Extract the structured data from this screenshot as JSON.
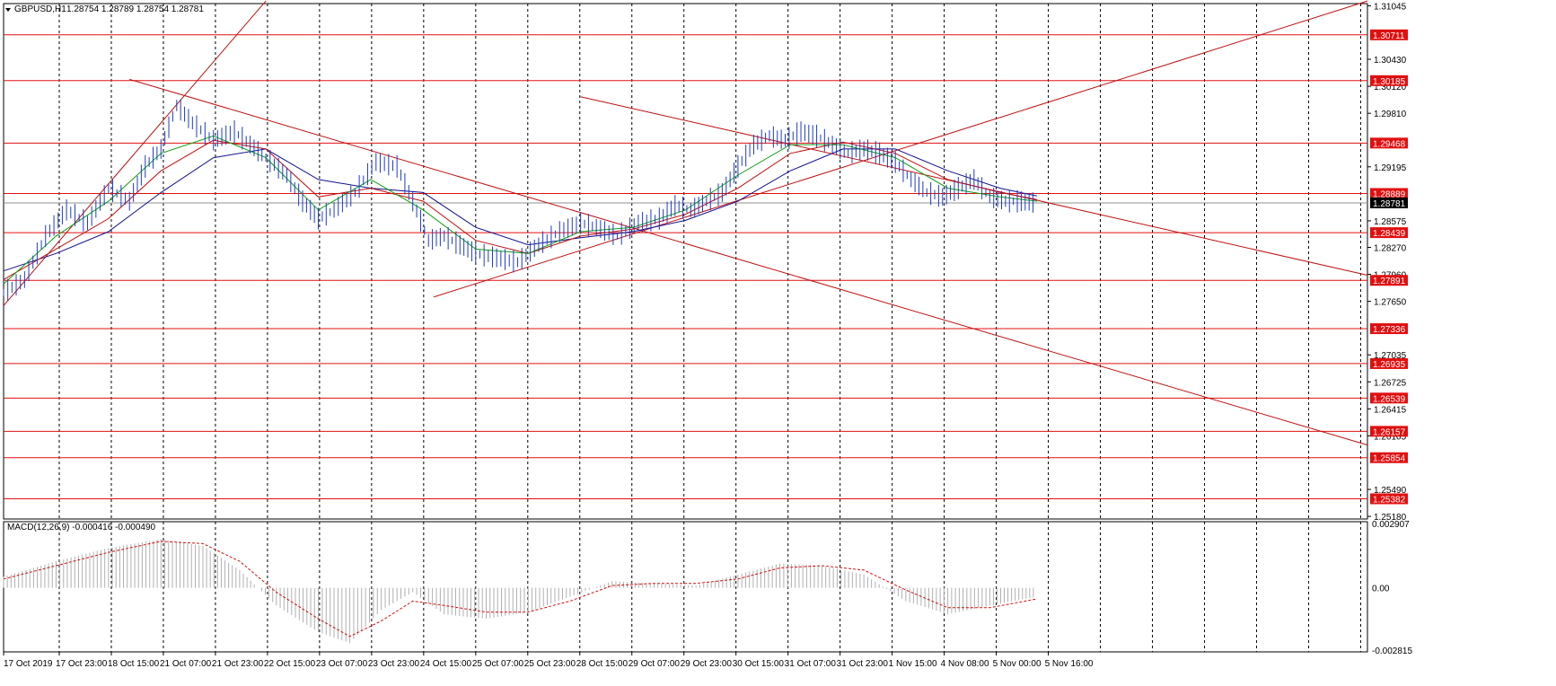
{
  "header": {
    "symbol_label": "GBPUSD,H1",
    "ohlc": "1.28754 1.28789 1.28754 1.28781"
  },
  "colors": {
    "bull": "#000000",
    "price_line": "#1e3cc8",
    "ma_fast": "#10a010",
    "ma_mid": "#c01010",
    "ma_slow": "#101090",
    "level_line": "#e01010",
    "level_tag_bg": "#e01010",
    "level_tag_text": "#ffffff",
    "current_tag_bg": "#000000",
    "grid": "#000000",
    "macd_hist": "#b0b0b0",
    "macd_signal": "#d01010"
  },
  "chart_data": {
    "type": "line",
    "title": "",
    "price_axis_ticks": [
      "1.31045",
      "1.30430",
      "1.30120",
      "1.29810",
      "1.29195",
      "1.28575",
      "1.28270",
      "1.27960",
      "1.27650",
      "1.27035",
      "1.26725",
      "1.26415",
      "1.26105",
      "1.25490",
      "1.25180"
    ],
    "time_axis_labels": [
      "17 Oct 2019",
      "17 Oct 23:00",
      "18 Oct 15:00",
      "21 Oct 07:00",
      "21 Oct 23:00",
      "22 Oct 15:00",
      "23 Oct 07:00",
      "23 Oct 23:00",
      "24 Oct 15:00",
      "25 Oct 07:00",
      "25 Oct 23:00",
      "28 Oct 15:00",
      "29 Oct 07:00",
      "29 Oct 23:00",
      "30 Oct 15:00",
      "31 Oct 07:00",
      "31 Oct 23:00",
      "1 Nov 15:00",
      "4 Nov 08:00",
      "5 Nov 00:00",
      "5 Nov 16:00"
    ],
    "horizontal_levels": [
      "1.30711",
      "1.30185",
      "1.29468",
      "1.28889",
      "1.28439",
      "1.27891",
      "1.27336",
      "1.26935",
      "1.26539",
      "1.26157",
      "1.25854",
      "1.25382"
    ],
    "current_price": "1.28781",
    "price_series": {
      "name": "GBPUSD,H1",
      "points": [
        [
          0,
          1.2775
        ],
        [
          4,
          1.279
        ],
        [
          8,
          1.284
        ],
        [
          12,
          1.287
        ],
        [
          16,
          1.2855
        ],
        [
          20,
          1.2895
        ],
        [
          24,
          1.288
        ],
        [
          27,
          1.292
        ],
        [
          30,
          1.294
        ],
        [
          33,
          1.299
        ],
        [
          36,
          1.297
        ],
        [
          40,
          1.295
        ],
        [
          44,
          1.296
        ],
        [
          47,
          1.2945
        ],
        [
          50,
          1.293
        ],
        [
          54,
          1.291
        ],
        [
          57,
          1.288
        ],
        [
          60,
          1.286
        ],
        [
          63,
          1.287
        ],
        [
          67,
          1.289
        ],
        [
          71,
          1.2925
        ],
        [
          75,
          1.292
        ],
        [
          78,
          1.288
        ],
        [
          81,
          1.2835
        ],
        [
          84,
          1.284
        ],
        [
          87,
          1.283
        ],
        [
          90,
          1.282
        ],
        [
          94,
          1.2815
        ],
        [
          98,
          1.281
        ],
        [
          102,
          1.283
        ],
        [
          106,
          1.2845
        ],
        [
          110,
          1.2855
        ],
        [
          113,
          1.285
        ],
        [
          117,
          1.284
        ],
        [
          121,
          1.2855
        ],
        [
          125,
          1.286
        ],
        [
          128,
          1.2875
        ],
        [
          131,
          1.287
        ],
        [
          134,
          1.288
        ],
        [
          137,
          1.289
        ],
        [
          140,
          1.292
        ],
        [
          143,
          1.2945
        ],
        [
          146,
          1.2955
        ],
        [
          149,
          1.295
        ],
        [
          152,
          1.296
        ],
        [
          155,
          1.2955
        ],
        [
          158,
          1.2945
        ],
        [
          161,
          1.2935
        ],
        [
          164,
          1.294
        ],
        [
          167,
          1.2935
        ],
        [
          170,
          1.2925
        ],
        [
          173,
          1.2905
        ],
        [
          176,
          1.289
        ],
        [
          179,
          1.2885
        ],
        [
          182,
          1.2895
        ],
        [
          185,
          1.2905
        ],
        [
          188,
          1.2885
        ],
        [
          191,
          1.288
        ],
        [
          194,
          1.288
        ],
        [
          197,
          1.2878
        ]
      ]
    },
    "ma_fast": {
      "points": [
        [
          0,
          1.2785
        ],
        [
          10,
          1.284
        ],
        [
          20,
          1.288
        ],
        [
          30,
          1.2935
        ],
        [
          40,
          1.2955
        ],
        [
          50,
          1.293
        ],
        [
          60,
          1.287
        ],
        [
          70,
          1.2905
        ],
        [
          80,
          1.287
        ],
        [
          90,
          1.2825
        ],
        [
          100,
          1.282
        ],
        [
          110,
          1.2845
        ],
        [
          120,
          1.285
        ],
        [
          130,
          1.287
        ],
        [
          140,
          1.291
        ],
        [
          150,
          1.2945
        ],
        [
          160,
          1.2945
        ],
        [
          170,
          1.293
        ],
        [
          180,
          1.2895
        ],
        [
          190,
          1.2885
        ],
        [
          197,
          1.288
        ]
      ]
    },
    "ma_mid": {
      "points": [
        [
          0,
          1.279
        ],
        [
          10,
          1.2825
        ],
        [
          20,
          1.286
        ],
        [
          30,
          1.2915
        ],
        [
          40,
          1.295
        ],
        [
          50,
          1.294
        ],
        [
          60,
          1.2885
        ],
        [
          70,
          1.2895
        ],
        [
          80,
          1.288
        ],
        [
          90,
          1.2835
        ],
        [
          100,
          1.282
        ],
        [
          110,
          1.284
        ],
        [
          120,
          1.2848
        ],
        [
          130,
          1.2865
        ],
        [
          140,
          1.2895
        ],
        [
          150,
          1.2935
        ],
        [
          160,
          1.2948
        ],
        [
          170,
          1.2935
        ],
        [
          180,
          1.2905
        ],
        [
          190,
          1.289
        ],
        [
          197,
          1.2882
        ]
      ]
    },
    "ma_slow": {
      "points": [
        [
          0,
          1.28
        ],
        [
          10,
          1.282
        ],
        [
          20,
          1.2845
        ],
        [
          30,
          1.289
        ],
        [
          40,
          1.293
        ],
        [
          50,
          1.294
        ],
        [
          60,
          1.2905
        ],
        [
          70,
          1.2895
        ],
        [
          80,
          1.289
        ],
        [
          90,
          1.285
        ],
        [
          100,
          1.283
        ],
        [
          110,
          1.2838
        ],
        [
          120,
          1.2845
        ],
        [
          130,
          1.2858
        ],
        [
          140,
          1.288
        ],
        [
          150,
          1.2915
        ],
        [
          160,
          1.294
        ],
        [
          170,
          1.294
        ],
        [
          180,
          1.2915
        ],
        [
          190,
          1.2895
        ],
        [
          197,
          1.2886
        ]
      ]
    },
    "macd": {
      "label": "MACD(12,26,9) -0.000416 -0.000490",
      "ticks": [
        "0.002907",
        "0.00",
        "-0.002815"
      ],
      "histogram": [
        [
          0,
          0.0005
        ],
        [
          10,
          0.0012
        ],
        [
          20,
          0.0018
        ],
        [
          30,
          0.0022
        ],
        [
          38,
          0.0019
        ],
        [
          45,
          0.0008
        ],
        [
          52,
          -0.0008
        ],
        [
          60,
          -0.002
        ],
        [
          66,
          -0.0025
        ],
        [
          72,
          -0.001
        ],
        [
          78,
          -0.0002
        ],
        [
          84,
          -0.0012
        ],
        [
          92,
          -0.0014
        ],
        [
          100,
          -0.0011
        ],
        [
          108,
          -0.0004
        ],
        [
          116,
          0.0003
        ],
        [
          124,
          0.0002
        ],
        [
          132,
          0.0001
        ],
        [
          140,
          0.0006
        ],
        [
          148,
          0.0011
        ],
        [
          156,
          0.001
        ],
        [
          164,
          0.0006
        ],
        [
          172,
          -0.0006
        ],
        [
          180,
          -0.0012
        ],
        [
          188,
          -0.0008
        ],
        [
          197,
          -0.0004
        ]
      ],
      "signal": [
        [
          0,
          0.0004
        ],
        [
          10,
          0.001
        ],
        [
          20,
          0.0016
        ],
        [
          30,
          0.0021
        ],
        [
          38,
          0.002
        ],
        [
          45,
          0.0012
        ],
        [
          52,
          -0.0002
        ],
        [
          60,
          -0.0014
        ],
        [
          66,
          -0.0022
        ],
        [
          72,
          -0.0015
        ],
        [
          78,
          -0.0006
        ],
        [
          84,
          -0.0008
        ],
        [
          92,
          -0.0011
        ],
        [
          100,
          -0.0011
        ],
        [
          108,
          -0.0006
        ],
        [
          116,
          0.0001
        ],
        [
          124,
          0.0002
        ],
        [
          132,
          0.0002
        ],
        [
          140,
          0.0004
        ],
        [
          148,
          0.0009
        ],
        [
          156,
          0.001
        ],
        [
          164,
          0.0008
        ],
        [
          172,
          -0.0001
        ],
        [
          180,
          -0.0009
        ],
        [
          188,
          -0.0009
        ],
        [
          197,
          -0.0005
        ]
      ]
    },
    "trendlines": [
      {
        "from": [
          0,
          1.276
        ],
        "to": [
          50,
          1.311
        ]
      },
      {
        "from": [
          24,
          1.302
        ],
        "to": [
          260,
          1.26
        ]
      },
      {
        "from": [
          82,
          1.277
        ],
        "to": [
          260,
          1.311
        ]
      },
      {
        "from": [
          110,
          1.3
        ],
        "to": [
          260,
          1.2795
        ]
      }
    ],
    "x_range": [
      0,
      260
    ],
    "y_range": [
      1.2515,
      1.3107
    ],
    "grid": true
  }
}
